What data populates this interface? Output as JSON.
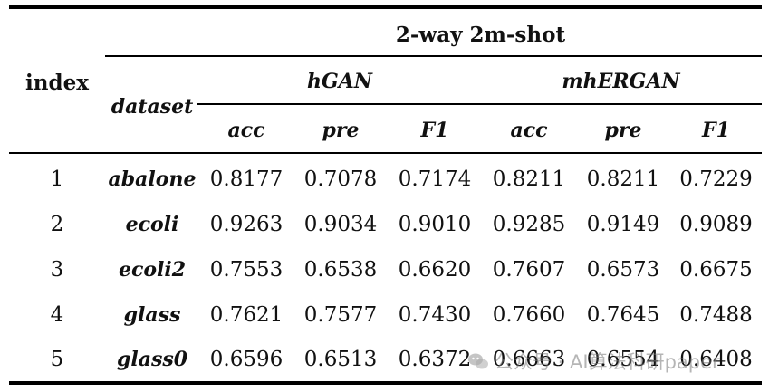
{
  "header": {
    "index_label": "index",
    "dataset_label": "dataset",
    "group_title": "2-way 2m-shot",
    "models": [
      "hGAN",
      "mhERGAN"
    ],
    "metrics": [
      "acc",
      "pre",
      "F1",
      "acc",
      "pre",
      "F1"
    ]
  },
  "rows": [
    {
      "index": "1",
      "dataset": "abalone",
      "values": [
        "0.8177",
        "0.7078",
        "0.7174",
        "0.8211",
        "0.8211",
        "0.7229"
      ]
    },
    {
      "index": "2",
      "dataset": "ecoli",
      "values": [
        "0.9263",
        "0.9034",
        "0.9010",
        "0.9285",
        "0.9149",
        "0.9089"
      ]
    },
    {
      "index": "3",
      "dataset": "ecoli2",
      "values": [
        "0.7553",
        "0.6538",
        "0.6620",
        "0.7607",
        "0.6573",
        "0.6675"
      ]
    },
    {
      "index": "4",
      "dataset": "glass",
      "values": [
        "0.7621",
        "0.7577",
        "0.7430",
        "0.7660",
        "0.7645",
        "0.7488"
      ]
    },
    {
      "index": "5",
      "dataset": "glass0",
      "values": [
        "0.6596",
        "0.6513",
        "0.6372",
        "0.6663",
        "0.6554",
        "0.6408"
      ]
    }
  ],
  "watermark": {
    "text": "公众号 · AI算法科研paper",
    "icon": "wechat-icon"
  }
}
